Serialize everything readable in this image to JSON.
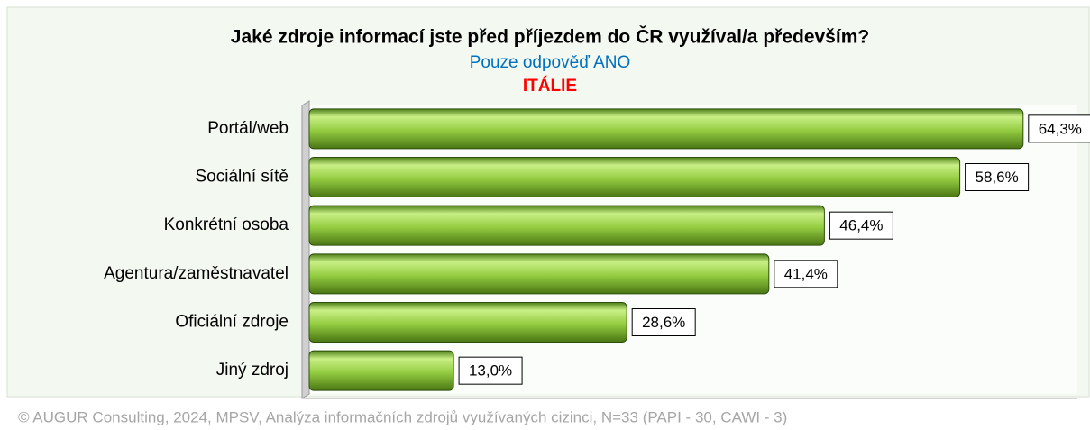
{
  "chart_data": {
    "type": "bar",
    "orientation": "horizontal",
    "title": "Jaké zdroje informací jste před příjezdem do ČR využíval/a především?",
    "subtitle": "Pouze odpověď ANO",
    "subtitle2": "ITÁLIE",
    "categories": [
      "Portál/web",
      "Sociální sítě",
      "Konkrétní osoba",
      "Agentura/zaměstnavatel",
      "Oficiální zdroje",
      "Jiný zdroj"
    ],
    "values": [
      64.3,
      58.6,
      46.4,
      41.4,
      28.6,
      13.0
    ],
    "value_labels": [
      "64,3%",
      "58,6%",
      "46,4%",
      "41,4%",
      "28,6%",
      "13,0%"
    ],
    "color": "#8cc63f",
    "xlim": [
      0,
      70
    ],
    "source": "© AUGUR Consulting, 2024, MPSV, Analýza informačních zdrojů využívaných cizinci, N=33 (PAPI - 30, CAWI - 3)"
  }
}
